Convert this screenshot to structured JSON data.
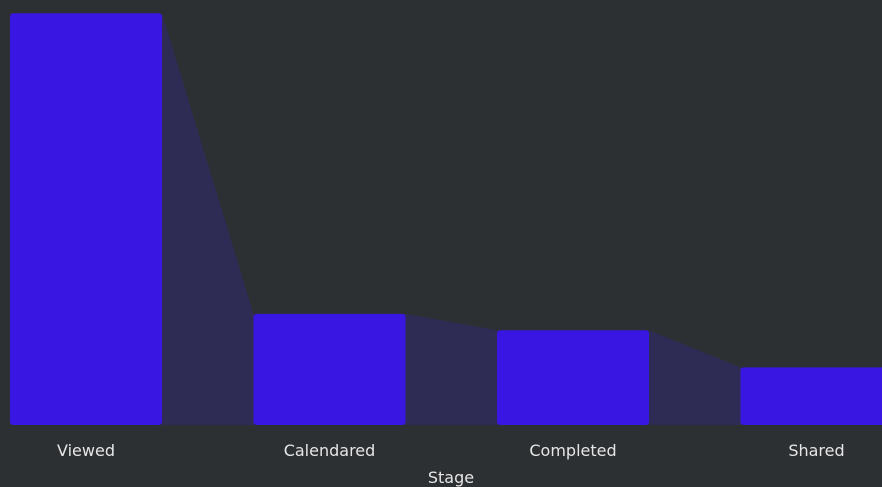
{
  "chart_data": {
    "type": "bar",
    "subtype": "funnel",
    "categories": [
      "Viewed",
      "Calendared",
      "Completed",
      "Shared"
    ],
    "values": [
      1000,
      270,
      230,
      140
    ],
    "xlabel": "Stage",
    "ylabel": "",
    "ylim": [
      0,
      1020
    ],
    "grid": false,
    "legend": "none",
    "colors": {
      "background": "#2d3033",
      "bar": "#3a16e3",
      "connector": "#2e2b55",
      "text": "#e6e6e6"
    }
  }
}
